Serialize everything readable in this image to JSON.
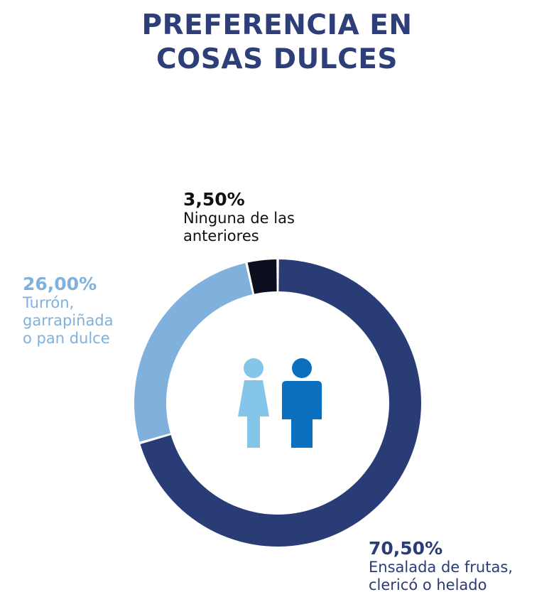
{
  "colors": {
    "title": "#2d3e79",
    "fruit": "#2a3c76",
    "nougat": "#7fb1dc",
    "none": "#0b0f1d",
    "woman_icon": "#86c5ea",
    "man_icon": "#0a6fbf"
  },
  "icons": [
    "woman-icon",
    "man-icon"
  ],
  "chart_data": {
    "type": "pie",
    "variant": "donut",
    "title": "PREFERENCIA EN COSAS DULCES",
    "title_lines": [
      "PREFERENCIA EN",
      "COSAS DULCES"
    ],
    "unit": "%",
    "slices": [
      {
        "key": "fruit",
        "value": 70.5,
        "value_label": "70,50%",
        "label_lines": [
          "Ensalada de frutas,",
          "clericó o helado"
        ],
        "color": "#2a3c76"
      },
      {
        "key": "nougat",
        "value": 26.0,
        "value_label": "26,00%",
        "label_lines": [
          "Turrón,",
          "garrapiñada",
          "o pan dulce"
        ],
        "color": "#7fb1dc"
      },
      {
        "key": "none",
        "value": 3.5,
        "value_label": "3,50%",
        "label_lines": [
          "Ninguna de las",
          "anteriores"
        ],
        "color": "#0b0f1d"
      }
    ]
  }
}
